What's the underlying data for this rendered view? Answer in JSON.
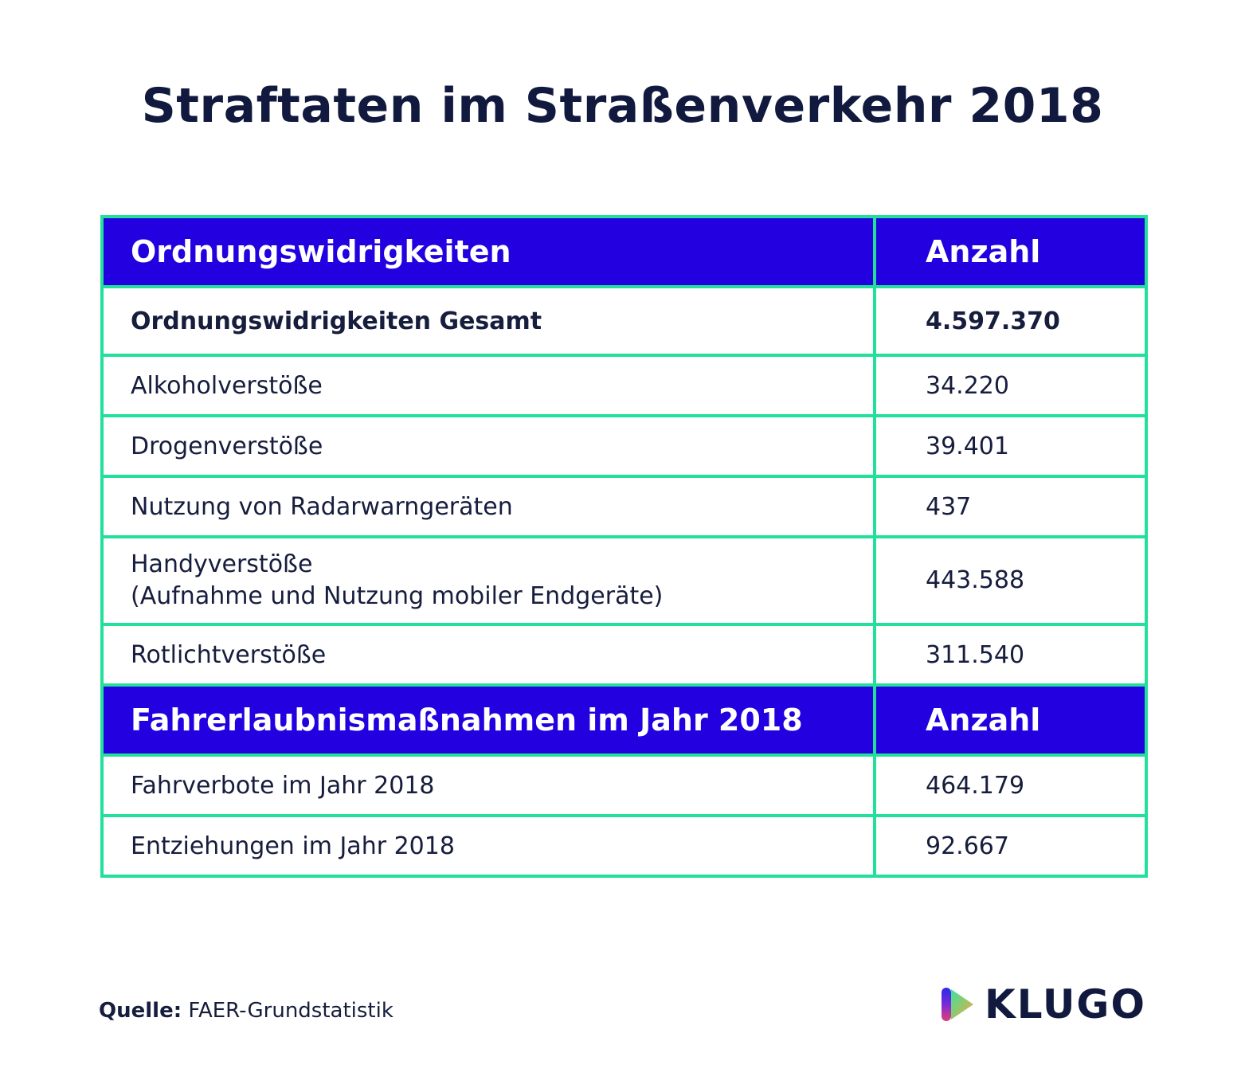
{
  "chart_data": {
    "type": "table",
    "title": "Straftaten im Straßenverkehr 2018",
    "sections": [
      {
        "header": [
          "Ordnungswidrigkeiten",
          "Anzahl"
        ],
        "rows": [
          {
            "label": "Ordnungswidrigkeiten Gesamt",
            "value": "4.597.370"
          },
          {
            "label": "Alkoholverstöße",
            "value": "34.220"
          },
          {
            "label": "Drogenverstöße",
            "value": "39.401"
          },
          {
            "label": "Nutzung von Radarwarngeräten",
            "value": "437"
          },
          {
            "label": "Handyverstöße",
            "label2": "(Aufnahme und Nutzung mobiler Endgeräte)",
            "value": "443.588"
          },
          {
            "label": "Rotlichtverstöße",
            "value": "311.540"
          }
        ]
      },
      {
        "header": [
          "Fahrerlaubnismaßnahmen im Jahr 2018",
          "Anzahl"
        ],
        "rows": [
          {
            "label": "Fahrverbote im Jahr 2018",
            "value": "464.179"
          },
          {
            "label": "Entziehungen im Jahr 2018",
            "value": "92.667"
          }
        ]
      }
    ]
  },
  "source": {
    "label": "Quelle:",
    "text": " FAER-Grundstatistik"
  },
  "logo": {
    "text": "KLUGO",
    "icon": "klugo-play-icon"
  },
  "colors": {
    "header_bg": "#2200e0",
    "border": "#22e09a",
    "text": "#111a3e"
  }
}
